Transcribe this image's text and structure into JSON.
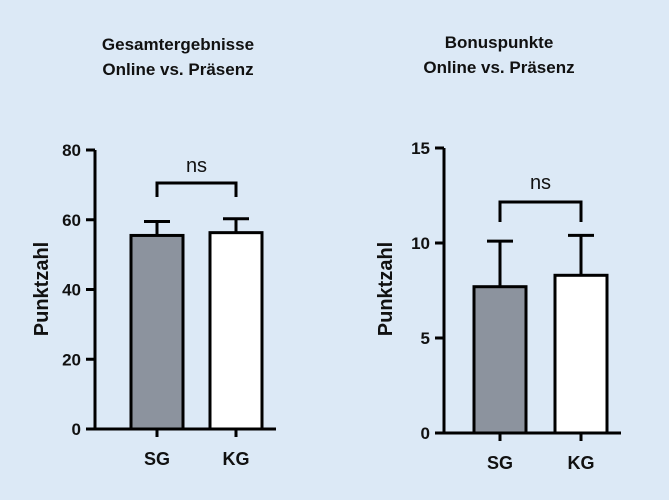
{
  "chart_data": [
    {
      "type": "bar",
      "title": [
        "Gesamtergebnisse",
        "Online vs. Präsenz"
      ],
      "ylabel": "Punktzahl",
      "xlabel": "",
      "categories": [
        "SG",
        "KG"
      ],
      "values": [
        55.5,
        56.3
      ],
      "error": [
        4.0,
        4.0
      ],
      "bar_colors": [
        "#8c939e",
        "#ffffff"
      ],
      "ylim": [
        0,
        80
      ],
      "yticks": [
        0,
        20,
        40,
        60,
        80
      ],
      "annotation": "ns",
      "grid": false
    },
    {
      "type": "bar",
      "title": [
        "Bonuspunkte",
        "Online vs. Präsenz"
      ],
      "ylabel": "Punktzahl",
      "xlabel": "",
      "categories": [
        "SG",
        "KG"
      ],
      "values": [
        7.7,
        8.3
      ],
      "error": [
        2.4,
        2.1
      ],
      "bar_colors": [
        "#8c939e",
        "#ffffff"
      ],
      "ylim": [
        0,
        15
      ],
      "yticks": [
        0,
        5,
        10,
        15
      ],
      "annotation": "ns",
      "grid": false
    }
  ]
}
